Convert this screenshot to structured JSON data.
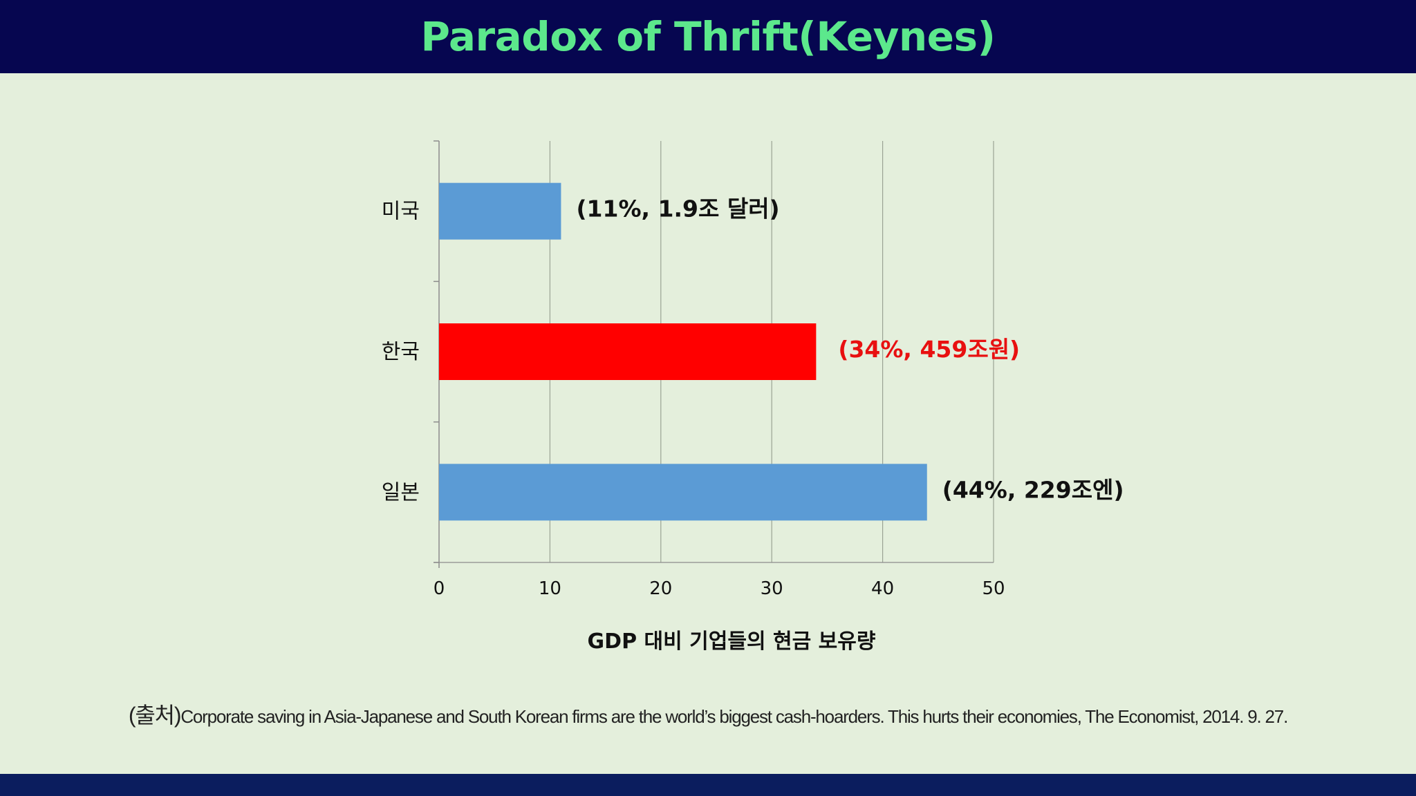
{
  "slide": {
    "title": "Paradox of Thrift(Keynes)",
    "source_prefix": "(출처)",
    "source_text": "Corporate saving in Asia-Japanese and South Korean firms are the world’s biggest cash-hoarders. This hurts their economies, The Economist, 2014. 9. 27."
  },
  "colors": {
    "header_bg": "#060650",
    "title": "#5ce88c",
    "background": "#e4efdc",
    "bar_default": "#5b9bd5",
    "bar_highlight": "#ff0000",
    "label_default": "#111111",
    "label_highlight": "#e81010",
    "footer_bg": "#0b1d5e"
  },
  "chart_data": {
    "type": "bar",
    "orientation": "horizontal",
    "categories": [
      "미국",
      "한국",
      "일본"
    ],
    "values": [
      11,
      34,
      44
    ],
    "data_labels": [
      "(11%, 1.9조 달러)",
      "(34%, 459조원)",
      "(44%, 229조엔)"
    ],
    "highlight_index": 1,
    "xlabel": "GDP 대비 기업들의 현금 보유량",
    "ylabel": "",
    "xlim": [
      0,
      50
    ],
    "xticks": [
      0,
      10,
      20,
      30,
      40,
      50
    ],
    "grid": true
  }
}
